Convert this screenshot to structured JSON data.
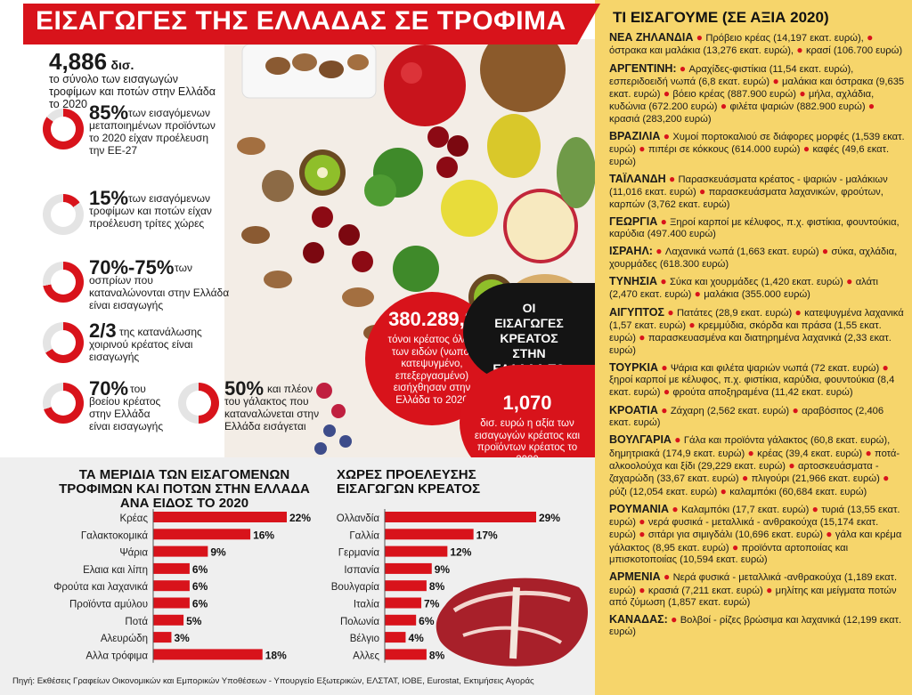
{
  "title": "ΕΙΣΑΓΩΓΕΣ ΤΗΣ ΕΛΛΑΔΑΣ ΣΕ ΤΡΟΦΙΜΑ",
  "colors": {
    "red": "#d8131b",
    "yellow": "#f6d56b",
    "grey_panel": "#efefef",
    "donut_track": "#e4e4e4"
  },
  "headline": {
    "value": "4,886",
    "unit": "δισ.",
    "text": "το σύνολο των εισαγωγών τροφίμων και ποτών στην Ελλάδα το 2020"
  },
  "stats": [
    {
      "value": "85%",
      "text": "των εισαγόμενων μεταποιημένων προϊόντων το 2020 είχαν προέλευση την ΕΕ-27",
      "fraction": 0.85
    },
    {
      "value": "15%",
      "text": "των εισαγόμενων τροφίμων και ποτών είχαν προέλευση τρίτες χώρες",
      "fraction": 0.15
    },
    {
      "value": "70%-75%",
      "text": "των οσπρίων που καταναλώνονται στην Ελλάδα είναι εισαγωγής",
      "fraction": 0.72
    },
    {
      "value": "2/3",
      "text": "της κατανάλωσης χοιρινού κρέατος είναι εισαγωγής",
      "fraction": 0.667
    },
    {
      "value": "70%",
      "text": "του βοείου κρέατος στην Ελλάδα είναι εισαγωγής",
      "fraction": 0.7
    },
    {
      "value": "50%",
      "text": "και πλέον του γάλακτος που καταναλώνεται στην Ελλάδα εισάγεται",
      "fraction": 0.5
    }
  ],
  "meat_circle": {
    "label": "ΟΙ ΕΙΣΑΓΩΓΕΣ ΚΡΕΑΤΟΣ ΣΤΗΝ ΕΛΛΑΔΑ ΤΟ 2020"
  },
  "meat_tonnes": {
    "value": "380.289,2",
    "text": "τόνοι κρέατος όλων των ειδών (νωπό, κατεψυγμένο, επεξεργασμένο) εισήχθησαν στην Ελλάδα το 2020"
  },
  "meat_value": {
    "value": "1,070",
    "text": "δισ. ευρώ η αξία των εισαγωγών κρέατος και προϊόντων κρέατος το 2020"
  },
  "right_panel": {
    "title": "ΤΙ ΕΙΣΑΓΟΥΜΕ (ΣΕ ΑΞΙΑ 2020)",
    "countries": [
      {
        "name": "ΝΕΑ ΖΗΛΑΝΔΙΑ",
        "items": [
          "Πρόβειο κρέας (14,197 εκατ. ευρώ),",
          "όστρακα και μαλάκια (13,276 εκατ. ευρώ),",
          "κρασί (106.700 ευρώ)"
        ]
      },
      {
        "name": "ΑΡΓΕΝΤΙΝΗ:",
        "items": [
          "Αραχίδες-φιστίκια (11,54 εκατ. ευρώ), εσπεριδοειδή νωπά (6,8 εκατ. ευρώ)",
          "μαλάκια και όστρακα (9,635 εκατ. ευρώ)",
          "βόειο κρέας (887.900 ευρώ)",
          "μήλα, αχλάδια, κυδώνια (672.200 ευρώ)",
          "φιλέτα ψαριών (882.900 ευρώ)",
          "κρασιά (283,200 ευρώ)"
        ]
      },
      {
        "name": "ΒΡΑΖΙΛΙΑ",
        "items": [
          "Χυμοί πορτοκαλιού σε διάφορες μορφές (1,539 εκατ. ευρώ)",
          "πιπέρι σε κόκκους (614.000 ευρώ)",
          "καφές (49,6 εκατ. ευρώ)"
        ]
      },
      {
        "name": "ΤΑΪΛΑΝΔΗ",
        "items": [
          "Παρασκευάσματα κρέατος - ψαριών - μαλάκιων (11,016 εκατ. ευρώ)",
          "παρασκευάσματα λαχανικών, φρούτων, καρπών (3,762 εκατ. ευρώ)"
        ]
      },
      {
        "name": "ΓΕΩΡΓΙΑ",
        "items": [
          "Ξηροί καρποί με κέλυφος, π.χ. φιστίκια, φουντούκια, καρύδια (497.400 ευρώ)"
        ]
      },
      {
        "name": "ΙΣΡΑΗΛ:",
        "items": [
          "Λαχανικά νωπά (1,663 εκατ. ευρώ)",
          "σύκα, αχλάδια, χουρμάδες (618.300 ευρώ)"
        ]
      },
      {
        "name": "ΤΥΝΗΣΙΑ",
        "items": [
          "Σύκα και χουρμάδες (1,420 εκατ. ευρώ)",
          "αλάτι (2,470 εκατ. ευρώ)",
          "μαλάκια (355.000 ευρώ)"
        ]
      },
      {
        "name": "ΑΙΓΥΠΤΟΣ",
        "items": [
          "Πατάτες (28,9 εκατ. ευρώ)",
          "κατεψυγμένα λαχανικά (1,57 εκατ. ευρώ)",
          "κρεμμύδια, σκόρδα και πράσα (1,55 εκατ. ευρώ)",
          "παρασκευασμένα και διατηρημένα λαχανικά (2,33 εκατ. ευρώ)"
        ]
      },
      {
        "name": "ΤΟΥΡΚΙΑ",
        "items": [
          "Ψάρια και φιλέτα ψαριών νωπά (72 εκατ. ευρώ)",
          "ξηροί καρποί με κέλυφος, π.χ. φιστίκια, καρύδια, φουντούκια (8,4 εκατ. ευρώ)",
          "φρούτα αποξηραμένα (11,42 εκατ. ευρώ)"
        ]
      },
      {
        "name": "ΚΡΟΑΤΙΑ",
        "items": [
          "Ζάχαρη (2,562 εκατ. ευρώ)",
          "αραβόσιτος (2,406 εκατ. ευρώ)"
        ]
      },
      {
        "name": "ΒΟΥΛΓΑΡΙΑ",
        "items": [
          "Γάλα και προϊόντα γάλακτος (60,8 εκατ. ευρώ), δημητριακά (174,9 εκατ. ευρώ)",
          "κρέας (39,4 εκατ. ευρώ)",
          "ποτά-αλκοολούχα και ξίδι (29,229 εκατ. ευρώ)",
          "αρτοσκευάσματα - ζαχαρώδη (33,67 εκατ. ευρώ)",
          "πλιγούρι (21,966 εκατ. ευρώ)",
          "ρύζι (12,054 εκατ. ευρώ)",
          "καλαμπόκι (60,684 εκατ. ευρώ)"
        ]
      },
      {
        "name": "ΡΟΥΜΑΝΙΑ",
        "items": [
          "Καλαμπόκι (17,7 εκατ. ευρώ)",
          "τυριά (13,55 εκατ. ευρώ)",
          "νερά φυσικά - μεταλλικά - ανθρακούχα (15,174 εκατ. ευρώ)",
          "σιτάρι για σιμιγδάλι (10,696 εκατ. ευρώ)",
          "γάλα και κρέμα γάλακτος (8,95 εκατ. ευρώ)",
          "προϊόντα αρτοποιίας και μπισκοτοποιίας (10,594 εκατ. ευρώ)"
        ]
      },
      {
        "name": "ΑΡΜΕΝΙΑ",
        "items": [
          "Νερά φυσικά - μεταλλικά -ανθρακούχα (1,189 εκατ. ευρώ)",
          "κρασιά (7,211 εκατ. ευρώ)",
          "μηλίτης και μείγματα ποτών από ζύμωση (1,857 εκατ. ευρώ)"
        ]
      },
      {
        "name": "ΚΑΝΑΔΑΣ:",
        "items": [
          "Βολβοί - ρίζες βρώσιμα και λαχανικά (12,199 εκατ. ευρώ)"
        ]
      }
    ]
  },
  "chart_data": [
    {
      "type": "bar",
      "title": "ΤΑ ΜΕΡΙΔΙΑ ΤΩΝ ΕΙΣΑΓΟΜΕΝΩΝ ΤΡΟΦΙΜΩΝ ΚΑΙ ΠΟΤΩΝ ΣΤΗΝ ΕΛΛΑΔΑ ΑΝΑ ΕΙΔΟΣ ΤΟ 2020",
      "orientation": "horizontal",
      "categories": [
        "Κρέας",
        "Γαλακτοκομικά",
        "Ψάρια",
        "Ελαια και λίπη",
        "Φρούτα και λαχανικά",
        "Προϊόντα αμύλου",
        "Ποτά",
        "Αλευρώδη",
        "Αλλα τρόφιμα"
      ],
      "values": [
        22,
        16,
        9,
        6,
        6,
        6,
        5,
        3,
        18
      ],
      "value_labels": [
        "22%",
        "16%",
        "9%",
        "6%",
        "6%",
        "6%",
        "5%",
        "3%",
        "18%"
      ],
      "unit": "%",
      "xlim": [
        0,
        22
      ]
    },
    {
      "type": "bar",
      "title": "ΧΩΡΕΣ ΠΡΟΕΛΕΥΣΗΣ ΕΙΣΑΓΩΓΩΝ ΚΡΕΑΤΟΣ",
      "orientation": "horizontal",
      "categories": [
        "Ολλανδία",
        "Γαλλία",
        "Γερμανία",
        "Ισπανία",
        "Βουλγαρία",
        "Ιταλία",
        "Πολωνία",
        "Βέλγιο",
        "Αλλες"
      ],
      "values": [
        29,
        17,
        12,
        9,
        8,
        7,
        6,
        4,
        8
      ],
      "value_labels": [
        "29%",
        "17%",
        "12%",
        "9%",
        "8%",
        "7%",
        "6%",
        "4%",
        "8%"
      ],
      "unit": "%",
      "xlim": [
        0,
        29
      ]
    }
  ],
  "source": "Πηγή: Εκθέσεις Γραφείων Οικονομικών και Εμπορικών Υποθέσεων - Υπουργείο Εξωτερικών, ΕΛΣΤΑΤ, ΙΟΒΕ, Eurostat, Εκτιμήσεις Αγοράς"
}
